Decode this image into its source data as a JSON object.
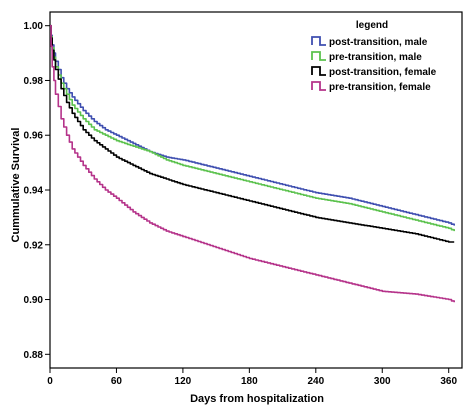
{
  "chart_data": {
    "type": "line",
    "title": "",
    "xlabel": "Days from hospitalization",
    "ylabel": "Cummulative Survival",
    "xlim": [
      0,
      372
    ],
    "ylim": [
      0.875,
      1.005
    ],
    "x_ticks": [
      0,
      60,
      120,
      180,
      240,
      300,
      360
    ],
    "x_tick_labels": [
      "0",
      "60",
      "120",
      "180",
      "240",
      "300",
      "360"
    ],
    "y_ticks": [
      0.88,
      0.9,
      0.92,
      0.94,
      0.96,
      0.98,
      1.0
    ],
    "y_tick_labels": [
      "0.88",
      "0.90",
      "0.92",
      "0.94",
      "0.96",
      "0.98",
      "1.00"
    ],
    "grid": false,
    "legend": {
      "title": "legend",
      "position": "top-right"
    },
    "series": [
      {
        "name": "post-transition, male",
        "color": "#3f4fb0",
        "x": [
          0,
          2,
          5,
          10,
          15,
          20,
          30,
          40,
          50,
          60,
          75,
          90,
          105,
          120,
          150,
          180,
          210,
          240,
          270,
          300,
          330,
          360,
          365
        ],
        "y": [
          1.0,
          0.993,
          0.987,
          0.981,
          0.977,
          0.974,
          0.969,
          0.965,
          0.962,
          0.96,
          0.957,
          0.954,
          0.952,
          0.951,
          0.948,
          0.945,
          0.942,
          0.939,
          0.937,
          0.934,
          0.931,
          0.928,
          0.927
        ]
      },
      {
        "name": "pre-transition, male",
        "color": "#5cc24e",
        "x": [
          0,
          2,
          5,
          10,
          15,
          20,
          30,
          40,
          50,
          60,
          75,
          90,
          105,
          120,
          150,
          180,
          210,
          240,
          270,
          300,
          330,
          360,
          365
        ],
        "y": [
          1.0,
          0.992,
          0.985,
          0.979,
          0.975,
          0.971,
          0.966,
          0.962,
          0.96,
          0.958,
          0.956,
          0.954,
          0.951,
          0.949,
          0.946,
          0.943,
          0.94,
          0.937,
          0.935,
          0.932,
          0.929,
          0.926,
          0.925
        ]
      },
      {
        "name": "post-transition, female",
        "color": "#000000",
        "x": [
          0,
          2,
          5,
          10,
          15,
          20,
          30,
          40,
          50,
          60,
          75,
          90,
          105,
          120,
          150,
          180,
          210,
          240,
          270,
          300,
          330,
          360,
          365
        ],
        "y": [
          1.0,
          0.991,
          0.984,
          0.977,
          0.972,
          0.968,
          0.962,
          0.958,
          0.955,
          0.952,
          0.949,
          0.946,
          0.944,
          0.942,
          0.939,
          0.936,
          0.933,
          0.93,
          0.928,
          0.926,
          0.924,
          0.921,
          0.921
        ]
      },
      {
        "name": "pre-transition, female",
        "color": "#b5338a",
        "x": [
          0,
          2,
          5,
          10,
          15,
          20,
          30,
          40,
          50,
          60,
          75,
          90,
          105,
          120,
          150,
          180,
          210,
          240,
          270,
          300,
          330,
          360,
          365
        ],
        "y": [
          1.0,
          0.985,
          0.975,
          0.966,
          0.96,
          0.955,
          0.949,
          0.944,
          0.94,
          0.937,
          0.932,
          0.928,
          0.925,
          0.923,
          0.919,
          0.915,
          0.912,
          0.909,
          0.906,
          0.903,
          0.902,
          0.9,
          0.899
        ]
      }
    ]
  }
}
